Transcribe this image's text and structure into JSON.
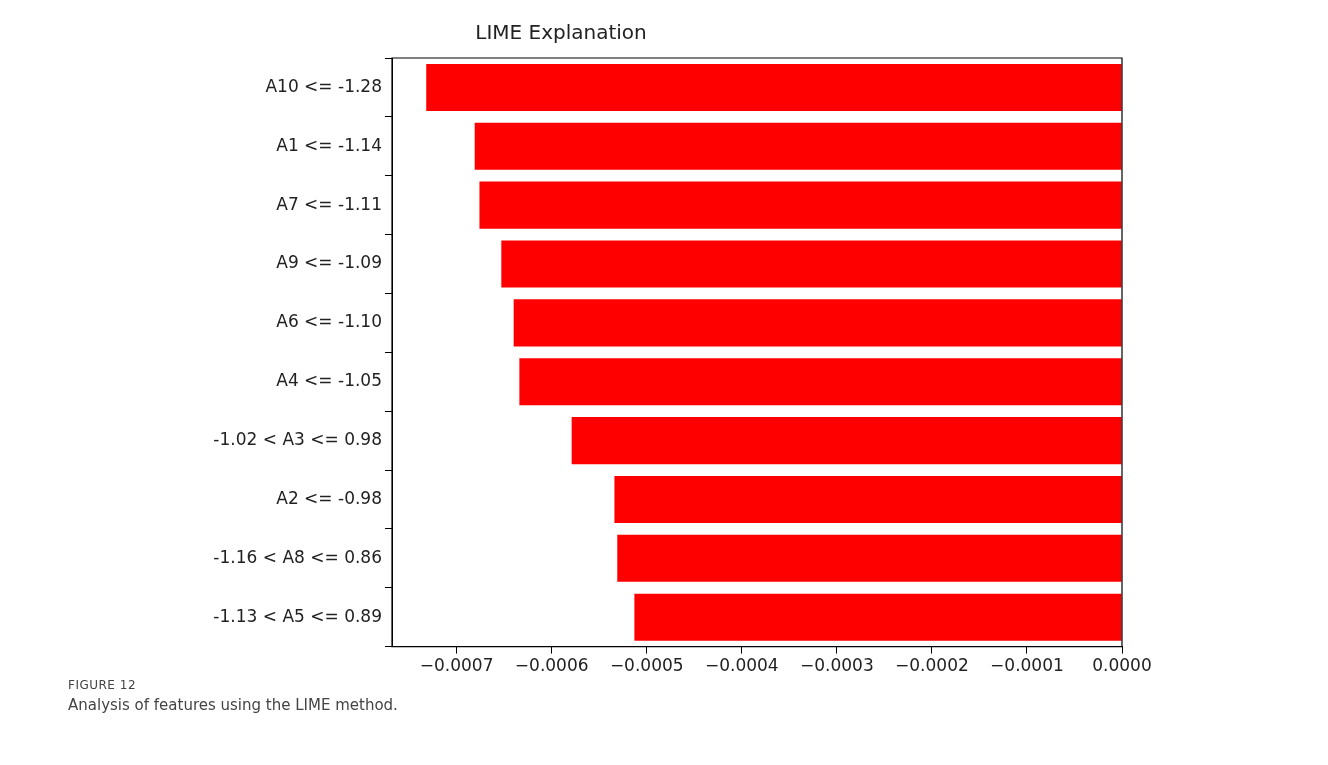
{
  "chart_data": {
    "type": "bar",
    "orientation": "horizontal",
    "title": "LIME Explanation",
    "categories": [
      "A10 <= -1.28",
      "A1 <= -1.14",
      "A7 <= -1.11",
      "A9 <= -1.09",
      "A6 <= -1.10",
      "A4 <= -1.05",
      "-1.02 < A3 <= 0.98",
      "A2 <= -0.98",
      "-1.16 < A8 <= 0.86",
      "-1.13 < A5 <= 0.89"
    ],
    "values": [
      -0.000732,
      -0.000681,
      -0.000676,
      -0.000653,
      -0.00064,
      -0.000634,
      -0.000579,
      -0.000534,
      -0.000531,
      -0.000513
    ],
    "color": "#ff0000",
    "xlim": [
      -0.000768,
      0
    ],
    "xticks": [
      {
        "value": -0.0007,
        "label": "−0.0007"
      },
      {
        "value": -0.0006,
        "label": "−0.0006"
      },
      {
        "value": -0.0005,
        "label": "−0.0005"
      },
      {
        "value": -0.0004,
        "label": "−0.0004"
      },
      {
        "value": -0.0003,
        "label": "−0.0003"
      },
      {
        "value": -0.0002,
        "label": "−0.0002"
      },
      {
        "value": -0.0001,
        "label": "−0.0001"
      },
      {
        "value": 0,
        "label": "0.0000"
      }
    ],
    "grid": false,
    "annotations": [
      "FIGURE 12",
      "Analysis of features using the LIME method."
    ]
  }
}
